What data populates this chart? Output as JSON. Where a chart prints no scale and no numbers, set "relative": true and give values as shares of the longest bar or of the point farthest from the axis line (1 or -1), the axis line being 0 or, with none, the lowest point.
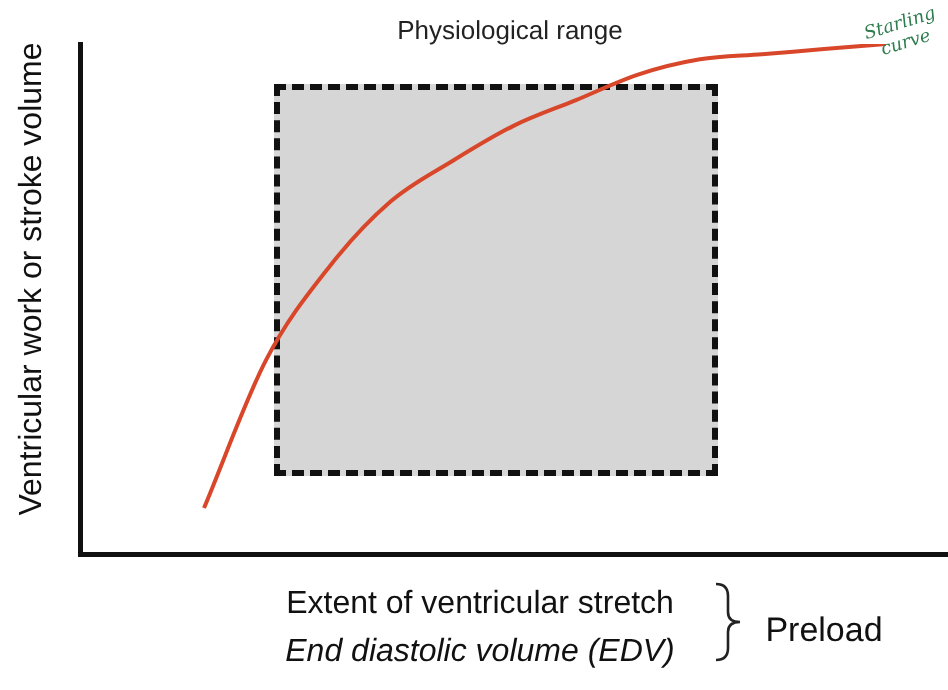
{
  "chart_data": {
    "type": "line",
    "relative": true,
    "xlabel": "Extent of ventricular stretch",
    "ylabel": "Ventricular work or stroke volume",
    "categories": [
      null,
      null,
      null,
      null,
      null,
      null,
      null,
      null,
      null,
      null,
      null,
      null,
      null,
      null,
      null
    ],
    "series": [
      {
        "color": "#d9472b",
        "values": [
          null,
          null,
          0.09,
          0.38,
          0.56,
          0.69,
          0.77,
          0.84,
          0.89,
          0.94,
          0.97,
          0.98,
          0.99,
          1,
          null
        ]
      }
    ],
    "marker": "none",
    "legend": false,
    "grid": false,
    "annotations": [
      "Physiological range",
      "End diastolic volume (EDV)",
      "Preload",
      "Starling curve"
    ]
  }
}
